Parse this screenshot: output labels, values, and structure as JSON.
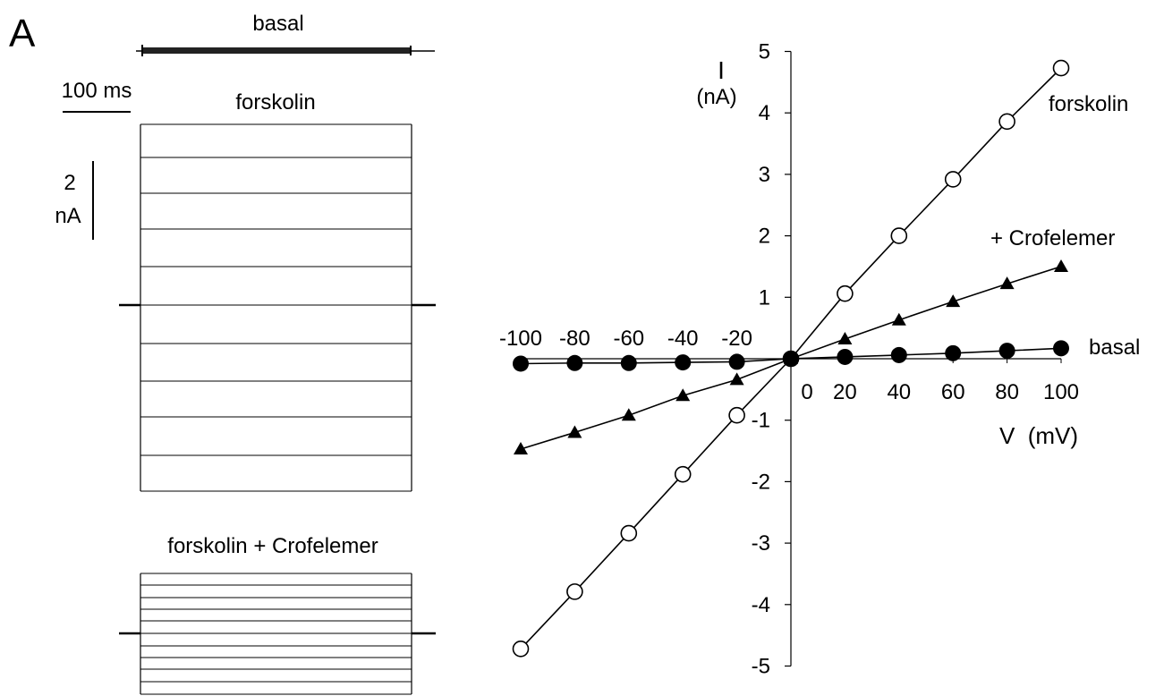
{
  "panel_label": "A",
  "traces": {
    "basal_label": "basal",
    "forskolin_label": "forskolin",
    "crofelemer_label": "forskolin  +  Crofelemer",
    "time_scale_label": "100 ms",
    "current_scale_value": "2",
    "current_scale_unit": "nA"
  },
  "chart_data": {
    "type": "line",
    "xlabel": "V  (mV)",
    "ylabel": "I",
    "ylabel_unit": "(nA)",
    "xlim": [
      -100,
      100
    ],
    "ylim": [
      -5,
      5
    ],
    "x_ticks": [
      -100,
      -80,
      -60,
      -40,
      -20,
      0,
      20,
      40,
      60,
      80,
      100
    ],
    "x_tick_labels": [
      "-100",
      "-80",
      "-60",
      "-40",
      "-20",
      "0",
      "20",
      "40",
      "60",
      "80",
      "100"
    ],
    "y_ticks": [
      -5,
      -4,
      -3,
      -2,
      -1,
      1,
      2,
      3,
      4,
      5
    ],
    "y_tick_labels": [
      "-5",
      "-4",
      "-3",
      "-2",
      "-1",
      "1",
      "2",
      "3",
      "4",
      "5"
    ],
    "grid": false,
    "x": [
      -100,
      -80,
      -60,
      -40,
      -20,
      0,
      20,
      40,
      60,
      80,
      100
    ],
    "series": [
      {
        "name": "forskolin",
        "marker": "open-circle",
        "values": [
          -4.72,
          -3.79,
          -2.84,
          -1.88,
          -0.92,
          0.0,
          1.06,
          2.0,
          2.92,
          3.86,
          4.73
        ]
      },
      {
        "name": "+ Crofelemer",
        "marker": "filled-triangle",
        "values": [
          -1.47,
          -1.2,
          -0.92,
          -0.6,
          -0.34,
          0.0,
          0.32,
          0.63,
          0.93,
          1.22,
          1.5
        ]
      },
      {
        "name": "basal",
        "marker": "filled-circle",
        "values": [
          -0.08,
          -0.07,
          -0.07,
          -0.06,
          -0.05,
          0.0,
          0.03,
          0.06,
          0.09,
          0.13,
          0.17
        ]
      }
    ]
  }
}
